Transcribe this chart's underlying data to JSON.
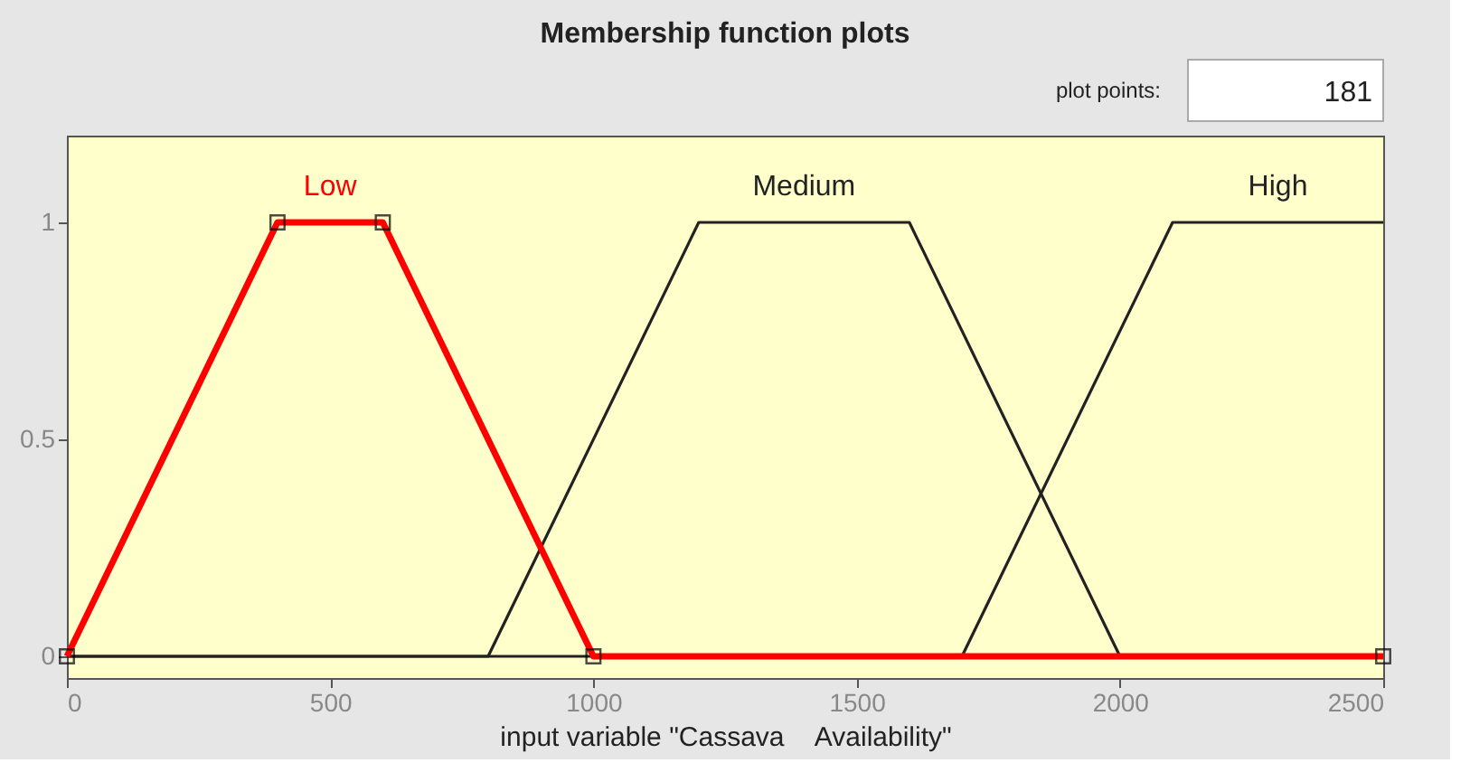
{
  "chart_data": {
    "type": "line",
    "title": "Membership function plots",
    "xlabel": "input variable \"Cassava    Availability\"",
    "annotations": [
      "plot points:",
      "181"
    ],
    "xlim": [
      0,
      2500
    ],
    "xticks": [
      0,
      500,
      1000,
      1500,
      2000,
      2500
    ],
    "ylim": [
      -0.05,
      1.2
    ],
    "yticks": [
      0,
      0.5,
      1
    ],
    "grid": false,
    "legend": false,
    "series": [
      {
        "name": "Medium",
        "color": "#222222",
        "x": [
          0,
          800,
          1200,
          1600,
          2000,
          2500
        ],
        "values": [
          0,
          0,
          1,
          1,
          0,
          0
        ],
        "marker": "none"
      },
      {
        "name": "High",
        "color": "#222222",
        "x": [
          0,
          1700,
          2100,
          2500
        ],
        "values": [
          0,
          0,
          1,
          1
        ],
        "marker": "none"
      },
      {
        "name": "Low",
        "color": "#ff0000",
        "x": [
          0,
          400,
          600,
          1000,
          2500
        ],
        "values": [
          0,
          1,
          1,
          0,
          0
        ],
        "marker": "square"
      }
    ]
  }
}
